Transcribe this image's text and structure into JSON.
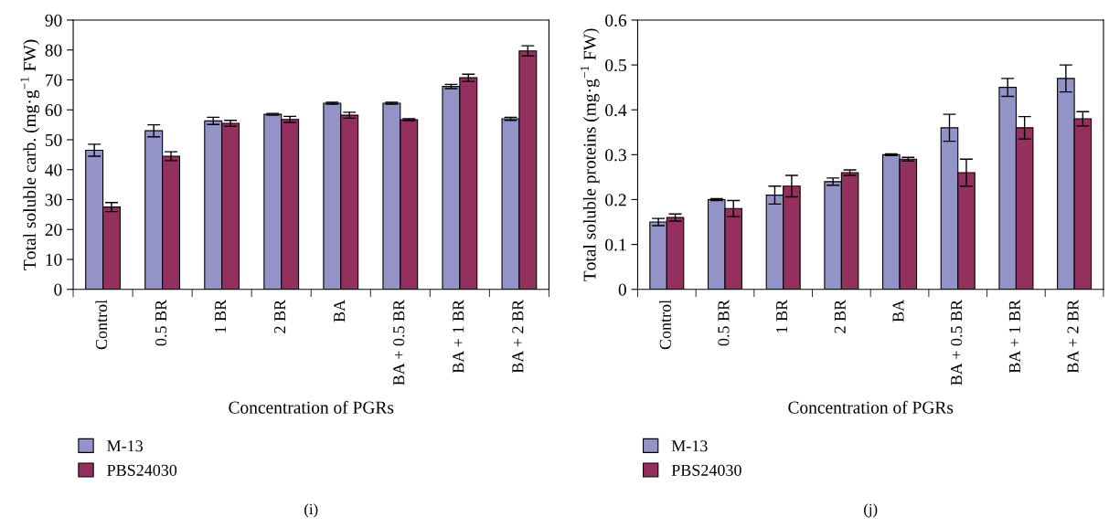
{
  "chart_data": [
    {
      "type": "bar",
      "categories": [
        "Control",
        "0.5 BR",
        "1 BR",
        "2 BR",
        "BA",
        "BA + 0.5 BR",
        "BA + 1 BR",
        "BA + 2 BR"
      ],
      "xlabel": "Concentration of PGRs",
      "ylabel": "Total soluble carb. (mg·g$^{−1}$ FW)",
      "ylim": [
        0,
        90
      ],
      "yticks": [
        0,
        10,
        20,
        30,
        40,
        50,
        60,
        70,
        80,
        90
      ],
      "legend": "bottom left",
      "grid": false,
      "annotations": [
        "(i)"
      ],
      "series": [
        {
          "name": "M-13",
          "color": "#9393c8",
          "values": [
            46.5,
            53,
            56.3,
            58.5,
            62.2,
            62.2,
            67.8,
            57
          ],
          "errors": [
            2,
            2,
            1.2,
            0.3,
            0.3,
            0.3,
            0.7,
            0.5
          ]
        },
        {
          "name": "PBS24030",
          "color": "#93305e",
          "values": [
            27.5,
            44.5,
            55.5,
            56.8,
            58.2,
            56.7,
            70.7,
            79.7
          ],
          "errors": [
            1.5,
            1.5,
            1,
            1,
            1,
            0.3,
            1.2,
            1.7
          ]
        }
      ]
    },
    {
      "type": "bar",
      "categories": [
        "Control",
        "0.5 BR",
        "1 BR",
        "2 BR",
        "BA",
        "BA + 0.5 BR",
        "BA + 1 BR",
        "BA + 2 BR"
      ],
      "xlabel": "Concentration of PGRs",
      "ylabel": "Total soluble proteins (mg·g$^{−1}$ FW)",
      "ylim": [
        0,
        0.6
      ],
      "yticks": [
        0,
        0.1,
        0.2,
        0.3,
        0.4,
        0.5,
        0.6
      ],
      "legend": "bottom left",
      "grid": false,
      "annotations": [
        "(j)"
      ],
      "series": [
        {
          "name": "M-13",
          "color": "#9393c8",
          "values": [
            0.15,
            0.2,
            0.21,
            0.24,
            0.3,
            0.36,
            0.45,
            0.47
          ],
          "errors": [
            0.008,
            0.002,
            0.02,
            0.008,
            0.002,
            0.03,
            0.02,
            0.03
          ]
        },
        {
          "name": "PBS24030",
          "color": "#93305e",
          "values": [
            0.16,
            0.18,
            0.23,
            0.26,
            0.29,
            0.26,
            0.36,
            0.38
          ],
          "errors": [
            0.008,
            0.018,
            0.024,
            0.006,
            0.004,
            0.03,
            0.025,
            0.016
          ]
        }
      ]
    }
  ]
}
